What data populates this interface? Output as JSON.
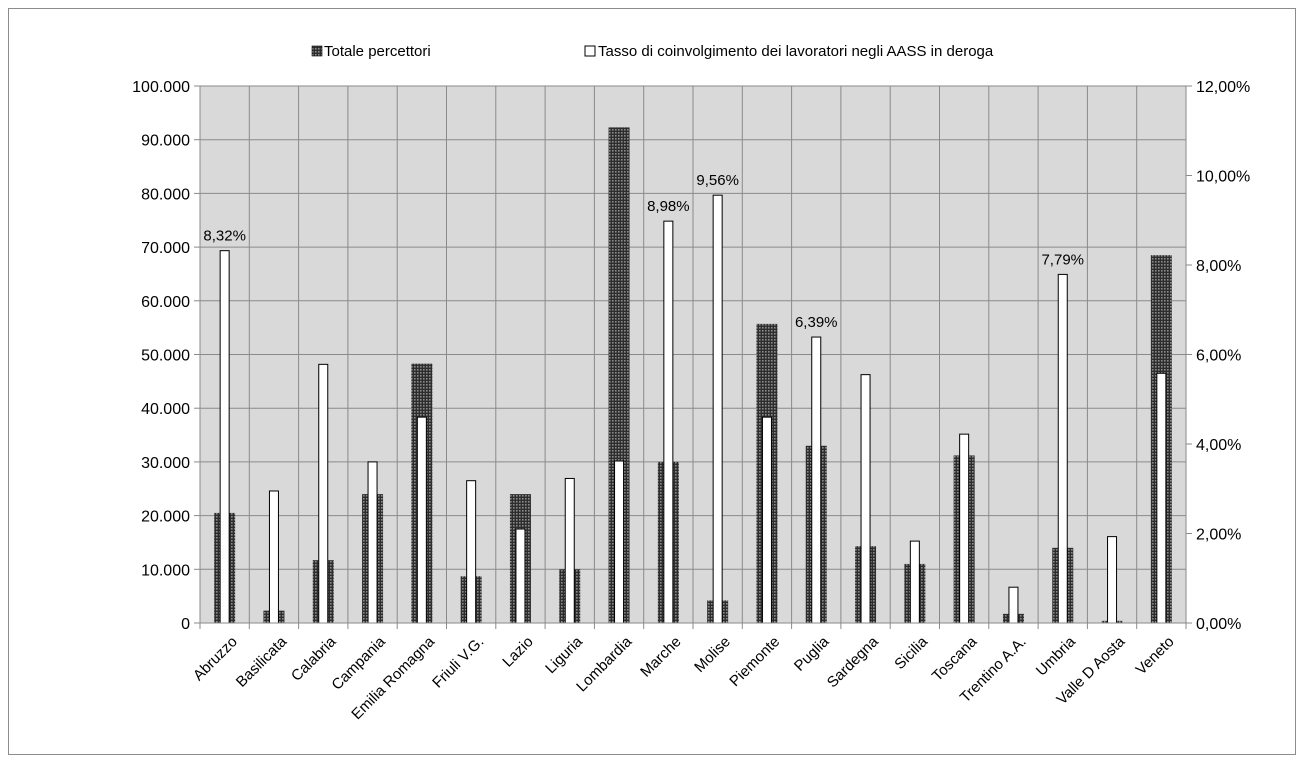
{
  "chart_data": {
    "type": "bar",
    "categories": [
      "Abruzzo",
      "Basilicata",
      "Calabria",
      "Campania",
      "Emilia Romagna",
      "Friuli V.G.",
      "Lazio",
      "Liguria",
      "Lombardia",
      "Marche",
      "Molise",
      "Piemonte",
      "Puglia",
      "Sardegna",
      "Sicilia",
      "Toscana",
      "Trentino A.A.",
      "Umbria",
      "Valle D Aosta",
      "Veneto"
    ],
    "series": [
      {
        "name": "Totale percettori",
        "axis": "left",
        "color": "#555555",
        "pattern": "dark-grid",
        "values": [
          20500,
          2300,
          11700,
          24000,
          48300,
          8700,
          24000,
          10000,
          92300,
          30000,
          4200,
          55700,
          33000,
          14300,
          11000,
          31200,
          1700,
          14000,
          400,
          68500
        ]
      },
      {
        "name": "Tasso di coinvolgimento dei lavoratori negli AASS in deroga",
        "axis": "right",
        "color": "#ffffff",
        "values": [
          8.32,
          2.95,
          5.78,
          3.6,
          4.6,
          3.18,
          2.1,
          3.23,
          3.62,
          8.98,
          9.56,
          4.6,
          6.39,
          5.55,
          1.83,
          4.22,
          0.8,
          7.79,
          1.93,
          5.58
        ],
        "data_labels": [
          "8,32%",
          "",
          "",
          "",
          "",
          "",
          "",
          "",
          "",
          "8,98%",
          "9,56%",
          "",
          "6,39%",
          "",
          "",
          "",
          "",
          "7,79%",
          "",
          ""
        ]
      }
    ],
    "y_left": {
      "ylim": [
        0,
        100000
      ],
      "ticks": [
        "0",
        "10.000",
        "20.000",
        "30.000",
        "40.000",
        "50.000",
        "60.000",
        "70.000",
        "80.000",
        "90.000",
        "100.000"
      ]
    },
    "y_right": {
      "ylim": [
        0,
        12
      ],
      "ticks": [
        "0,00%",
        "2,00%",
        "4,00%",
        "6,00%",
        "8,00%",
        "10,00%",
        "12,00%"
      ]
    },
    "grid": true,
    "legend": "top",
    "plot_background": "#d9d9d9"
  }
}
